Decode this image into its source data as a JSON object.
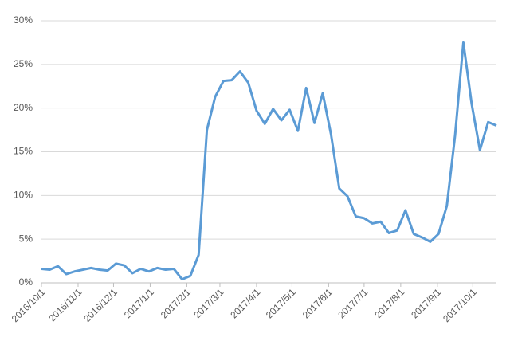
{
  "chart_data": {
    "type": "line",
    "x": [
      "2016/10/1",
      "2016/10/8",
      "2016/10/15",
      "2016/10/22",
      "2016/10/29",
      "2016/11/5",
      "2016/11/12",
      "2016/11/19",
      "2016/11/26",
      "2016/12/3",
      "2016/12/10",
      "2016/12/17",
      "2016/12/24",
      "2016/12/31",
      "2017/1/7",
      "2017/1/14",
      "2017/1/21",
      "2017/1/28",
      "2017/2/4",
      "2017/2/11",
      "2017/2/18",
      "2017/2/25",
      "2017/3/4",
      "2017/3/11",
      "2017/3/18",
      "2017/3/25",
      "2017/4/1",
      "2017/4/8",
      "2017/4/15",
      "2017/4/22",
      "2017/4/29",
      "2017/5/6",
      "2017/5/13",
      "2017/5/20",
      "2017/5/27",
      "2017/6/3",
      "2017/6/10",
      "2017/6/17",
      "2017/6/24",
      "2017/7/1",
      "2017/7/8",
      "2017/7/15",
      "2017/7/22",
      "2017/7/29",
      "2017/8/5",
      "2017/8/12",
      "2017/8/19",
      "2017/8/26",
      "2017/9/2",
      "2017/9/9",
      "2017/9/16",
      "2017/9/23",
      "2017/9/30",
      "2017/10/7",
      "2017/10/14",
      "2017/10/21"
    ],
    "series": [
      {
        "color": "#5b9bd5",
        "values": [
          1.6,
          1.5,
          1.9,
          1.0,
          1.3,
          1.5,
          1.7,
          1.5,
          1.4,
          2.2,
          2.0,
          1.1,
          1.6,
          1.3,
          1.7,
          1.5,
          1.6,
          0.4,
          0.8,
          3.2,
          17.5,
          21.3,
          23.1,
          23.2,
          24.2,
          22.9,
          19.7,
          18.2,
          19.9,
          18.6,
          19.8,
          17.4,
          22.3,
          18.3,
          21.7,
          17.0,
          10.8,
          9.9,
          7.6,
          7.4,
          6.8,
          7.0,
          5.7,
          6.0,
          8.3,
          5.6,
          5.2,
          4.7,
          5.6,
          8.8,
          16.9,
          27.5,
          20.5,
          15.2,
          18.4,
          18.0
        ]
      }
    ],
    "xlim": [
      "2016/10/1",
      "2017/10/21"
    ],
    "xticks": [
      "2016/10/1",
      "2016/11/1",
      "2016/12/1",
      "2017/1/1",
      "2017/2/1",
      "2017/3/1",
      "2017/4/1",
      "2017/5/1",
      "2017/6/1",
      "2017/7/1",
      "2017/8/1",
      "2017/9/1",
      "2017/10/1"
    ],
    "ylim": [
      0,
      30
    ],
    "yticks": [
      {
        "value": 0,
        "label": "0%"
      },
      {
        "value": 5,
        "label": "5%"
      },
      {
        "value": 10,
        "label": "10%"
      },
      {
        "value": 15,
        "label": "15%"
      },
      {
        "value": 20,
        "label": "20%"
      },
      {
        "value": 25,
        "label": "25%"
      },
      {
        "value": 30,
        "label": "30%"
      }
    ],
    "grid": true
  }
}
